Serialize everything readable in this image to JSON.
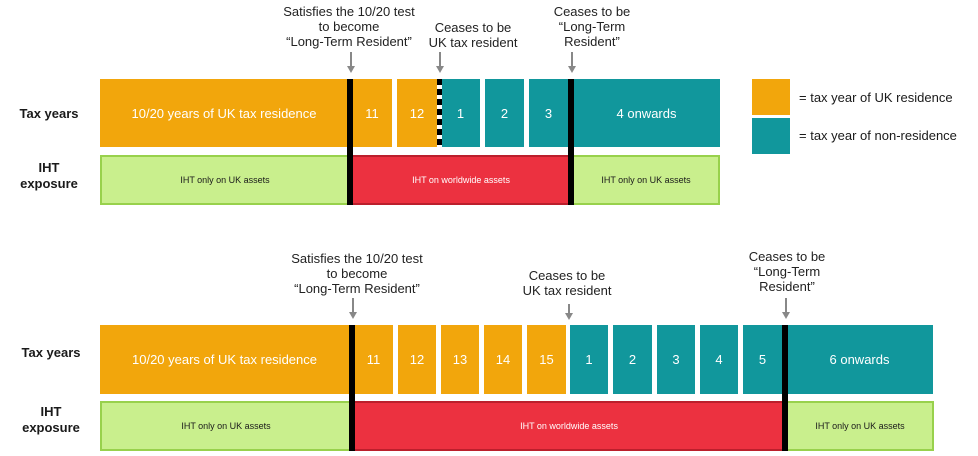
{
  "legend": {
    "uk_label": "= tax year of UK residence",
    "nonres_label": "= tax year of non-residence"
  },
  "colors": {
    "uk_residence": "#f2a60c",
    "non_residence": "#11979c",
    "iht_uk_only": "#c9ef8d",
    "iht_worldwide": "#ec3140"
  },
  "diagram1": {
    "row_tax_years": "Tax years",
    "row_iht_line1": "IHT",
    "row_iht_line2": "exposure",
    "annotations": {
      "test": [
        "Satisfies the 10/20 test",
        "to become",
        "“Long-Term Resident”"
      ],
      "ceases_uk": [
        "Ceases to be",
        "UK tax resident"
      ],
      "ceases_ltr": [
        "Ceases to be",
        "“Long-Term",
        "Resident”"
      ]
    },
    "first_block": "10/20 years of UK tax residence",
    "uk_years": [
      "11",
      "12"
    ],
    "nonres_years": [
      "1",
      "2",
      "3"
    ],
    "onwards": "4 onwards",
    "iht": {
      "left": "IHT only on UK assets",
      "middle": "IHT on worldwide assets",
      "right": "IHT only on UK assets"
    }
  },
  "diagram2": {
    "row_tax_years": "Tax years",
    "row_iht_line1": "IHT",
    "row_iht_line2": "exposure",
    "annotations": {
      "test": [
        "Satisfies the 10/20 test",
        "to become",
        "“Long-Term Resident”"
      ],
      "ceases_uk": [
        "Ceases to be",
        "UK tax resident"
      ],
      "ceases_ltr": [
        "Ceases to be",
        "“Long-Term",
        "Resident”"
      ]
    },
    "first_block": "10/20 years of UK tax residence",
    "uk_years": [
      "11",
      "12",
      "13",
      "14",
      "15"
    ],
    "nonres_years": [
      "1",
      "2",
      "3",
      "4",
      "5"
    ],
    "onwards": "6 onwards",
    "iht": {
      "left": "IHT only on UK assets",
      "middle": "IHT on worldwide assets",
      "right": "IHT only on UK assets"
    }
  }
}
